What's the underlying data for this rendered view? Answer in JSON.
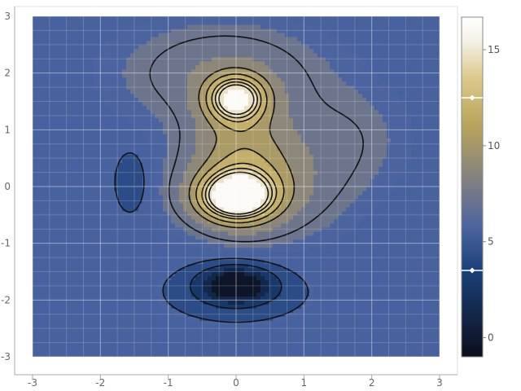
{
  "chart_data": {
    "type": "heatmap",
    "subtype": "filled-contour",
    "title": "",
    "xlabel": "",
    "ylabel": "",
    "xlim": [
      -3,
      3
    ],
    "ylim": [
      -3,
      3
    ],
    "x_ticks": [
      -3,
      -2,
      -1,
      0,
      1,
      2,
      3
    ],
    "y_ticks": [
      -3,
      -2,
      -1,
      0,
      1,
      2,
      3
    ],
    "grid": true,
    "background_level": 5.6,
    "colorbar": {
      "range": [
        -1,
        16.7
      ],
      "ticks": [
        0,
        5,
        10,
        15
      ],
      "colors": [
        "#0b0e1c",
        "#1a3f78",
        "#4a64a0",
        "#828080",
        "#b9a45a",
        "#dcc98c",
        "#f4f1e6",
        "#ffffff"
      ],
      "markers": [
        3.5,
        12.5
      ],
      "placement": "right"
    },
    "features": [
      {
        "kind": "peak",
        "x": 0.0,
        "y": -0.18,
        "value": 16.7
      },
      {
        "kind": "peak",
        "x": 0.0,
        "y": 1.55,
        "value": 15.4
      },
      {
        "kind": "trough",
        "x": -0.02,
        "y": -1.72,
        "value": -1.0
      },
      {
        "kind": "trough",
        "x": -1.55,
        "y": 0.08,
        "value": 3.3
      }
    ]
  }
}
